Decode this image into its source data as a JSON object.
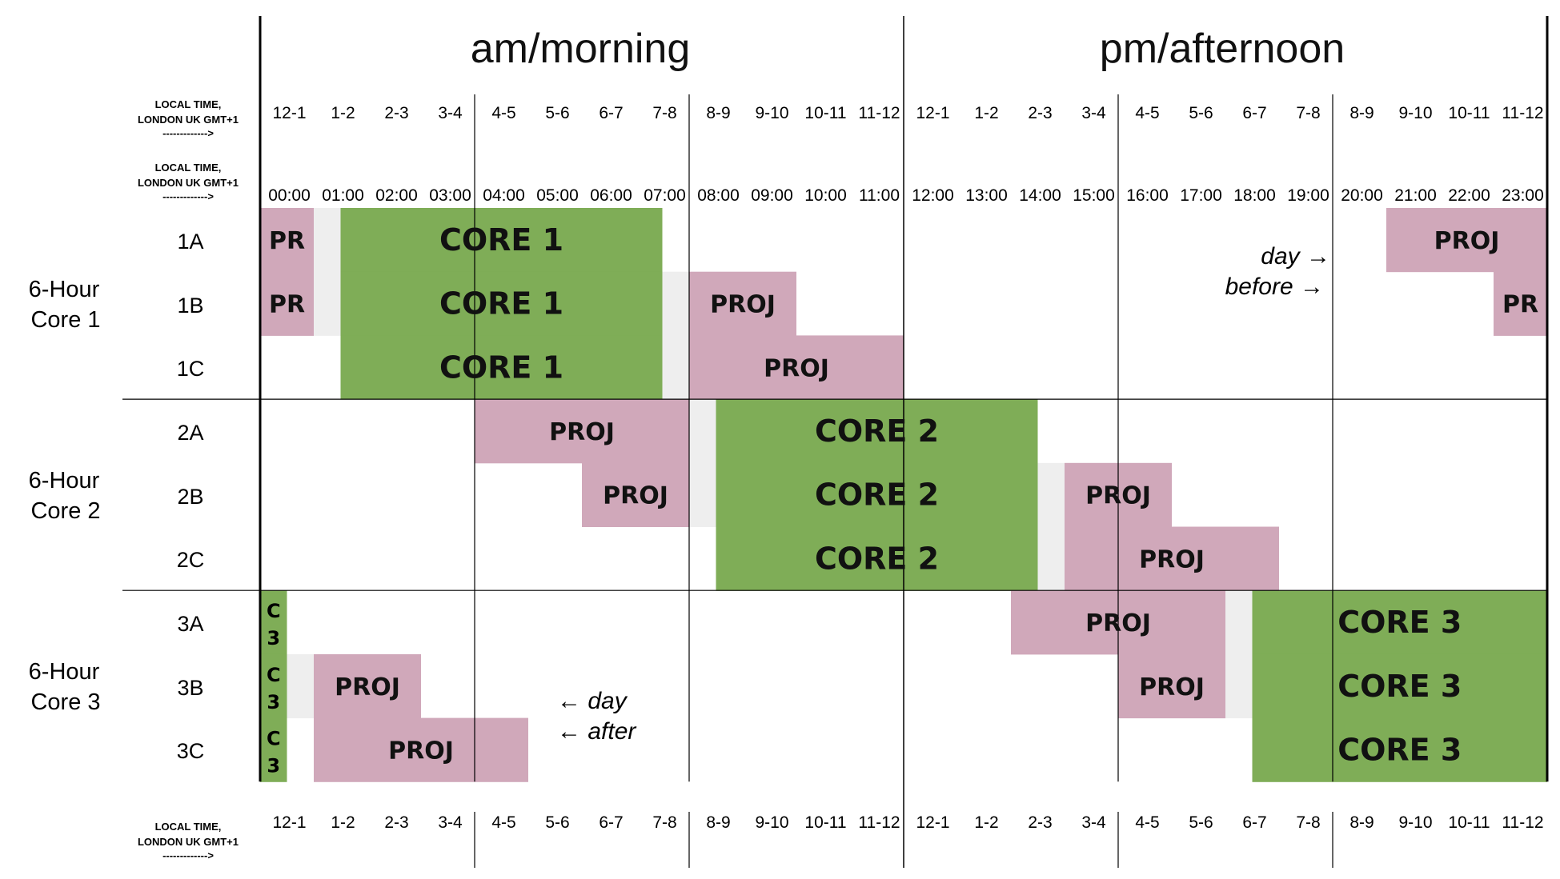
{
  "headers": {
    "am": "am/morning",
    "pm": "pm/afternoon"
  },
  "row_labels": {
    "local_time": [
      "LOCAL TIME,",
      "LONDON UK  GMT+1",
      "------------->"
    ]
  },
  "hour_ranges": [
    "12-1",
    "1-2",
    "2-3",
    "3-4",
    "4-5",
    "5-6",
    "6-7",
    "7-8",
    "8-9",
    "9-10",
    "10-11",
    "11-12",
    "12-1",
    "1-2",
    "2-3",
    "3-4",
    "4-5",
    "5-6",
    "6-7",
    "7-8",
    "8-9",
    "9-10",
    "10-11",
    "11-12"
  ],
  "clock_times": [
    "00:00",
    "01:00",
    "02:00",
    "03:00",
    "04:00",
    "05:00",
    "06:00",
    "07:00",
    "08:00",
    "09:00",
    "10:00",
    "11:00",
    "12:00",
    "13:00",
    "14:00",
    "15:00",
    "16:00",
    "17:00",
    "18:00",
    "19:00",
    "20:00",
    "21:00",
    "22:00",
    "23:00"
  ],
  "groups": [
    {
      "label_line1": "6-Hour",
      "label_line2": "Core 1",
      "rows": [
        "1A",
        "1B",
        "1C"
      ]
    },
    {
      "label_line1": "6-Hour",
      "label_line2": "Core 2",
      "rows": [
        "2A",
        "2B",
        "2C"
      ]
    },
    {
      "label_line1": "6-Hour",
      "label_line2": "Core 3",
      "rows": [
        "3A",
        "3B",
        "3C"
      ]
    }
  ],
  "colors": {
    "core": "#7fad57",
    "proj": "#d0a8ba",
    "gap": "#eeeeee",
    "line": "#000000"
  },
  "blocks": [
    {
      "row": 0,
      "start": 0,
      "end": 1,
      "type": "proj",
      "label": "PR"
    },
    {
      "row": 0,
      "start": 1,
      "end": 1.5,
      "type": "gap",
      "label": ""
    },
    {
      "row": 0,
      "start": 1.5,
      "end": 7.5,
      "type": "core",
      "label": "CORE   1"
    },
    {
      "row": 0,
      "start": 21,
      "end": 24,
      "type": "proj",
      "label": "PROJ"
    },
    {
      "row": 1,
      "start": 0,
      "end": 1,
      "type": "proj",
      "label": "PR"
    },
    {
      "row": 1,
      "start": 1,
      "end": 1.5,
      "type": "gap",
      "label": ""
    },
    {
      "row": 1,
      "start": 1.5,
      "end": 7.5,
      "type": "core",
      "label": "CORE   1"
    },
    {
      "row": 1,
      "start": 7.5,
      "end": 8,
      "type": "gap",
      "label": ""
    },
    {
      "row": 1,
      "start": 8,
      "end": 10,
      "type": "proj",
      "label": "PROJ"
    },
    {
      "row": 1,
      "start": 23,
      "end": 24,
      "type": "proj",
      "label": "PR"
    },
    {
      "row": 2,
      "start": 1.5,
      "end": 7.5,
      "type": "core",
      "label": "CORE   1"
    },
    {
      "row": 2,
      "start": 7.5,
      "end": 8,
      "type": "gap",
      "label": ""
    },
    {
      "row": 2,
      "start": 8,
      "end": 12,
      "type": "proj",
      "label": "PROJ"
    },
    {
      "row": 3,
      "start": 4,
      "end": 8,
      "type": "proj",
      "label": "PROJ"
    },
    {
      "row": 3,
      "start": 8,
      "end": 8.5,
      "type": "gap",
      "label": ""
    },
    {
      "row": 3,
      "start": 8.5,
      "end": 14.5,
      "type": "core",
      "label": "CORE   2"
    },
    {
      "row": 4,
      "start": 6,
      "end": 8,
      "type": "proj",
      "label": "PROJ"
    },
    {
      "row": 4,
      "start": 8,
      "end": 8.5,
      "type": "gap",
      "label": ""
    },
    {
      "row": 4,
      "start": 8.5,
      "end": 14.5,
      "type": "core",
      "label": "CORE   2"
    },
    {
      "row": 4,
      "start": 14.5,
      "end": 15,
      "type": "gap",
      "label": ""
    },
    {
      "row": 4,
      "start": 15,
      "end": 17,
      "type": "proj",
      "label": "PROJ"
    },
    {
      "row": 5,
      "start": 8.5,
      "end": 14.5,
      "type": "core",
      "label": "CORE   2"
    },
    {
      "row": 5,
      "start": 14.5,
      "end": 15,
      "type": "gap",
      "label": ""
    },
    {
      "row": 5,
      "start": 15,
      "end": 19,
      "type": "proj",
      "label": "PROJ"
    },
    {
      "row": 6,
      "start": 0,
      "end": 0.5,
      "type": "core",
      "label": "C 3"
    },
    {
      "row": 6,
      "start": 14,
      "end": 18,
      "type": "proj",
      "label": "PROJ"
    },
    {
      "row": 6,
      "start": 18,
      "end": 18.5,
      "type": "gap",
      "label": ""
    },
    {
      "row": 6,
      "start": 18.5,
      "end": 24,
      "type": "core",
      "label": "CORE   3"
    },
    {
      "row": 7,
      "start": 0,
      "end": 0.5,
      "type": "core",
      "label": "C 3"
    },
    {
      "row": 7,
      "start": 0.5,
      "end": 1,
      "type": "gap",
      "label": ""
    },
    {
      "row": 7,
      "start": 1,
      "end": 3,
      "type": "proj",
      "label": "PROJ"
    },
    {
      "row": 7,
      "start": 16,
      "end": 18,
      "type": "proj",
      "label": "PROJ"
    },
    {
      "row": 7,
      "start": 18,
      "end": 18.5,
      "type": "gap",
      "label": ""
    },
    {
      "row": 7,
      "start": 18.5,
      "end": 24,
      "type": "core",
      "label": "CORE   3"
    },
    {
      "row": 8,
      "start": 0,
      "end": 0.5,
      "type": "core",
      "label": "C 3"
    },
    {
      "row": 8,
      "start": 1,
      "end": 5,
      "type": "proj",
      "label": "PROJ"
    },
    {
      "row": 8,
      "start": 18.5,
      "end": 24,
      "type": "core",
      "label": "CORE   3"
    }
  ],
  "notes": {
    "day_before_1": "day →",
    "day_before_2": "before →",
    "day_after_1": "← day",
    "day_after_2": "← after"
  }
}
